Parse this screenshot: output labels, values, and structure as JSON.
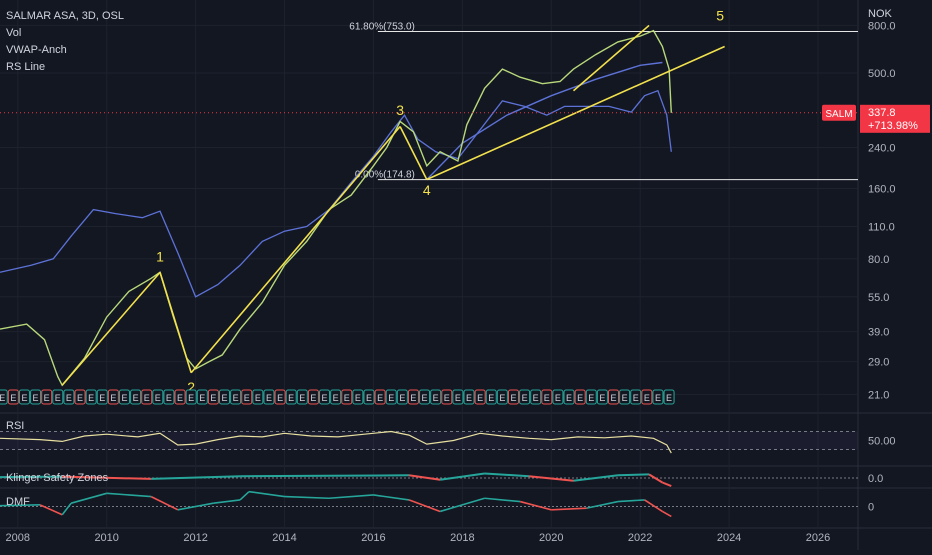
{
  "header": {
    "symbol_line": "SALMAR ASA, 3D, OSL",
    "indicators": [
      "Vol",
      "VWAP-Anch",
      "RS Line"
    ]
  },
  "colors": {
    "background": "#131722",
    "price": "#b8d87a",
    "rs_line": "#5d72d8",
    "trend": "#f2e14d",
    "fib": "#e6e6e6",
    "last_price_badge": "#f23645",
    "rsi": "#e8e0a0",
    "klinger_up": "#26a69a",
    "klinger_down": "#ef5350",
    "earnings_badge": "#26a69a",
    "earnings_badge_alt": "#ef5350"
  },
  "chart_data": {
    "type": "line",
    "symbol": "SALM",
    "currency": "NOK",
    "xlim": [
      2007.6,
      2026.9
    ],
    "ylim": [
      18,
      950
    ],
    "y_scale": "log",
    "x_ticks": [
      "2008",
      "2010",
      "2012",
      "2014",
      "2016",
      "2018",
      "2020",
      "2022",
      "2024",
      "2026"
    ],
    "y_ticks": [
      "800.0",
      "500.0",
      "240.0",
      "160.0",
      "110.0",
      "80.0",
      "55.0",
      "39.0",
      "29.0",
      "21.0"
    ],
    "last_price": {
      "value": "337.8",
      "change": "+713.98%",
      "label": "SALM"
    },
    "price_series": {
      "x": [
        2007.6,
        2008.2,
        2008.6,
        2008.9,
        2009.0,
        2009.5,
        2010.0,
        2010.5,
        2011.0,
        2011.2,
        2011.5,
        2011.8,
        2012.0,
        2012.3,
        2012.6,
        2013.0,
        2013.5,
        2014.0,
        2014.5,
        2015.0,
        2015.5,
        2016.0,
        2016.3,
        2016.6,
        2016.9,
        2017.2,
        2017.5,
        2017.9,
        2018.1,
        2018.5,
        2018.9,
        2019.3,
        2019.8,
        2020.2,
        2020.5,
        2021.0,
        2021.5,
        2022.0,
        2022.3,
        2022.5,
        2022.65,
        2022.7
      ],
      "y": [
        40,
        42,
        36,
        25,
        23,
        30,
        45,
        58,
        66,
        70,
        45,
        30,
        27,
        29,
        31,
        40,
        52,
        75,
        95,
        130,
        150,
        200,
        240,
        310,
        280,
        200,
        230,
        210,
        300,
        430,
        520,
        480,
        450,
        460,
        520,
        600,
        680,
        720,
        760,
        650,
        520,
        337.8
      ]
    },
    "rs_series": {
      "x": [
        2007.6,
        2008.3,
        2008.8,
        2009.2,
        2009.7,
        2010.2,
        2010.8,
        2011.2,
        2011.6,
        2012.0,
        2012.5,
        2013.0,
        2013.5,
        2014.0,
        2014.5,
        2015.0,
        2015.5,
        2016.0,
        2016.4,
        2016.7,
        2017.0,
        2017.4,
        2017.9,
        2018.3,
        2018.9,
        2019.4,
        2019.9,
        2020.3,
        2020.8,
        2021.3,
        2021.8,
        2022.1,
        2022.4,
        2022.6,
        2022.7
      ],
      "y": [
        70,
        75,
        80,
        100,
        130,
        125,
        120,
        128,
        85,
        55,
        62,
        75,
        95,
        105,
        110,
        130,
        170,
        220,
        280,
        330,
        260,
        230,
        215,
        270,
        380,
        360,
        330,
        360,
        360,
        360,
        340,
        400,
        420,
        330,
        230
      ]
    },
    "vwap_series": {
      "x": [
        2017.2,
        2018.0,
        2019.0,
        2020.0,
        2021.0,
        2022.0,
        2022.5
      ],
      "y": [
        175,
        250,
        330,
        400,
        470,
        540,
        555
      ]
    },
    "trend_lines": [
      {
        "x": [
          2009.0,
          2011.2
        ],
        "y": [
          23,
          70
        ]
      },
      {
        "x": [
          2011.2,
          2011.9
        ],
        "y": [
          70,
          26
        ]
      },
      {
        "x": [
          2011.9,
          2016.6
        ],
        "y": [
          26,
          295
        ]
      },
      {
        "x": [
          2016.6,
          2017.2
        ],
        "y": [
          295,
          175
        ]
      },
      {
        "x": [
          2017.2,
          2023.9
        ],
        "y": [
          175,
          650
        ]
      },
      {
        "x": [
          2020.5,
          2022.2
        ],
        "y": [
          420,
          800
        ]
      }
    ],
    "fib_levels": [
      {
        "label": "61.80%(753.0)",
        "value": 753.0
      },
      {
        "label": "0.00%(174.8)",
        "value": 174.8
      }
    ],
    "wave_labels": [
      {
        "text": "1",
        "x": 2011.2,
        "y": 78
      },
      {
        "text": "2",
        "x": 2011.9,
        "y": 21.5
      },
      {
        "text": "3",
        "x": 2016.6,
        "y": 330
      },
      {
        "text": "4",
        "x": 2017.2,
        "y": 150
      },
      {
        "text": "5",
        "x": 2023.8,
        "y": 840
      }
    ],
    "rsi": {
      "label": "RSI",
      "tick": "50.00",
      "x": [
        2007.6,
        2008.5,
        2009.0,
        2009.5,
        2010.0,
        2010.7,
        2011.2,
        2011.6,
        2012.0,
        2012.5,
        2013.0,
        2013.5,
        2014.0,
        2014.6,
        2015.2,
        2015.8,
        2016.4,
        2016.8,
        2017.2,
        2017.8,
        2018.4,
        2018.9,
        2019.5,
        2020.0,
        2020.6,
        2021.2,
        2021.8,
        2022.3,
        2022.6,
        2022.7
      ],
      "y": [
        55,
        52,
        48,
        60,
        64,
        58,
        66,
        40,
        42,
        52,
        60,
        58,
        66,
        60,
        58,
        64,
        70,
        62,
        42,
        50,
        66,
        60,
        55,
        52,
        58,
        56,
        60,
        55,
        40,
        22
      ]
    },
    "klinger": {
      "label": "Klinger Safety Zones",
      "tick": "0.0",
      "x": [
        2007.6,
        2009.0,
        2011.0,
        2013.0,
        2015.0,
        2016.8,
        2017.5,
        2018.5,
        2019.5,
        2020.5,
        2021.5,
        2022.2,
        2022.5,
        2022.7
      ],
      "y": [
        0.1,
        0.15,
        -0.1,
        0.2,
        0.25,
        0.3,
        -0.2,
        0.5,
        0.2,
        -0.3,
        0.3,
        0.4,
        -0.5,
        -0.9
      ]
    },
    "dmf": {
      "label": "DMF",
      "tick": "0",
      "x": [
        2007.6,
        2008.5,
        2009.0,
        2009.2,
        2010.0,
        2011.0,
        2011.6,
        2012.4,
        2013.0,
        2013.2,
        2014.0,
        2015.0,
        2016.0,
        2016.8,
        2017.5,
        2018.5,
        2019.3,
        2020.0,
        2020.8,
        2021.5,
        2022.1,
        2022.5,
        2022.7
      ],
      "y": [
        0.05,
        0.1,
        -0.5,
        0.2,
        0.8,
        0.6,
        -0.2,
        0.2,
        0.4,
        0.9,
        0.6,
        0.5,
        0.7,
        0.4,
        -0.3,
        0.5,
        0.3,
        -0.2,
        -0.1,
        0.3,
        0.4,
        -0.3,
        -0.6
      ]
    },
    "earnings_markers": {
      "glyph": "E",
      "first_x": 2007.65,
      "step": 0.25,
      "count": 61
    }
  }
}
